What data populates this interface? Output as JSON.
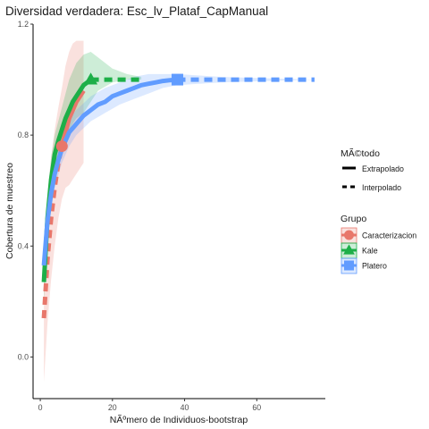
{
  "chart_data": {
    "type": "line",
    "title": "Diversidad verdadera: Esc_lv_Plataf_CapManual",
    "xlabel": "NÃºmero de Individuos-bootstrap",
    "ylabel": "Cobertura de muestreo",
    "xlim": [
      -2,
      79
    ],
    "ylim": [
      -0.15,
      1.2
    ],
    "x_ticks": [
      0,
      20,
      40,
      60
    ],
    "x_tick_labels": [
      "0",
      "20",
      "40",
      "60"
    ],
    "y_ticks": [
      0.0,
      0.4,
      0.8,
      1.2
    ],
    "y_tick_labels": [
      "0.0",
      "0.4",
      "0.8",
      "1.2"
    ],
    "grid": false,
    "legend_placement": "right",
    "legend": {
      "method_title": "MÃ©todo",
      "methods": [
        {
          "label": "Extrapolado",
          "dash": false
        },
        {
          "label": "Interpolado",
          "dash": true
        }
      ],
      "group_title": "Grupo"
    },
    "series": [
      {
        "name": "Caracterizacion",
        "color": "#E8776B",
        "shape": "circle",
        "observed": {
          "x": 6,
          "y": 0.76
        },
        "interpolated": {
          "x": [
            1,
            2,
            3,
            4,
            5,
            6
          ],
          "y": [
            0.14,
            0.35,
            0.5,
            0.61,
            0.7,
            0.76
          ]
        },
        "extrapolated": {
          "x": [
            6,
            7,
            8,
            9,
            10,
            11,
            12
          ],
          "y": [
            0.76,
            0.81,
            0.86,
            0.89,
            0.92,
            0.94,
            0.96
          ]
        },
        "ci_lower": {
          "x": [
            1,
            2,
            3,
            4,
            5,
            6,
            7,
            8,
            9,
            10,
            11,
            12
          ],
          "y": [
            -0.09,
            0.12,
            0.28,
            0.4,
            0.5,
            0.57,
            0.61,
            0.62,
            0.64,
            0.66,
            0.68,
            0.7
          ]
        },
        "ci_upper": {
          "x": [
            1,
            2,
            3,
            4,
            5,
            6,
            7,
            8,
            9,
            10,
            11,
            12
          ],
          "y": [
            0.38,
            0.58,
            0.72,
            0.82,
            0.9,
            0.97,
            1.05,
            1.1,
            1.13,
            1.14,
            1.14,
            1.14
          ]
        }
      },
      {
        "name": "Kale",
        "color": "#1DAF48",
        "shape": "triangle",
        "observed": {
          "x": 14,
          "y": 1.0
        },
        "interpolated": {
          "x": [
            14,
            17,
            20,
            23,
            26,
            28
          ],
          "y": [
            1.0,
            1.0,
            1.0,
            1.0,
            1.0,
            1.0
          ]
        },
        "extrapolated": {
          "x": [
            1,
            2,
            3,
            4,
            5,
            6,
            7,
            8,
            9,
            10,
            11,
            12,
            13,
            14
          ],
          "y": [
            0.27,
            0.5,
            0.64,
            0.73,
            0.78,
            0.82,
            0.86,
            0.89,
            0.92,
            0.94,
            0.96,
            0.98,
            0.99,
            1.0
          ]
        },
        "ci_lower": {
          "x": [
            1,
            2,
            3,
            4,
            6,
            8,
            10,
            12,
            14,
            16,
            20,
            24,
            28
          ],
          "y": [
            0.2,
            0.42,
            0.56,
            0.66,
            0.76,
            0.82,
            0.86,
            0.88,
            0.92,
            0.96,
            0.99,
            1.0,
            1.0
          ]
        },
        "ci_upper": {
          "x": [
            1,
            2,
            3,
            4,
            6,
            8,
            10,
            12,
            14,
            16,
            20,
            24,
            28
          ],
          "y": [
            0.34,
            0.58,
            0.72,
            0.8,
            0.9,
            1.0,
            1.06,
            1.09,
            1.1,
            1.08,
            1.04,
            1.02,
            1.01
          ]
        }
      },
      {
        "name": "Platero",
        "color": "#619CFF",
        "shape": "square",
        "observed": {
          "x": 38,
          "y": 1.0
        },
        "interpolated": {
          "x": [
            38,
            45,
            55,
            65,
            76
          ],
          "y": [
            1.0,
            1.0,
            1.0,
            1.0,
            1.0
          ]
        },
        "extrapolated": {
          "x": [
            1,
            2,
            3,
            4,
            5,
            6,
            7,
            8,
            10,
            12,
            14,
            16,
            18,
            20,
            22,
            24,
            26,
            28,
            30,
            32,
            34,
            36,
            38
          ],
          "y": [
            0.33,
            0.49,
            0.59,
            0.66,
            0.71,
            0.75,
            0.78,
            0.81,
            0.84,
            0.87,
            0.89,
            0.91,
            0.92,
            0.94,
            0.95,
            0.96,
            0.97,
            0.98,
            0.985,
            0.99,
            0.995,
            0.998,
            1.0
          ]
        },
        "ci_lower": {
          "x": [
            1,
            2,
            3,
            4,
            6,
            8,
            10,
            14,
            18,
            22,
            26,
            30,
            34,
            38,
            50,
            76
          ],
          "y": [
            0.28,
            0.44,
            0.54,
            0.61,
            0.7,
            0.76,
            0.8,
            0.85,
            0.88,
            0.91,
            0.93,
            0.95,
            0.97,
            0.98,
            0.99,
            1.0
          ]
        },
        "ci_upper": {
          "x": [
            1,
            2,
            3,
            4,
            6,
            8,
            10,
            14,
            18,
            22,
            26,
            30,
            34,
            38,
            50,
            76
          ],
          "y": [
            0.38,
            0.54,
            0.64,
            0.71,
            0.8,
            0.86,
            0.89,
            0.94,
            0.97,
            0.99,
            1.01,
            1.02,
            1.02,
            1.02,
            1.01,
            1.0
          ]
        }
      }
    ]
  }
}
